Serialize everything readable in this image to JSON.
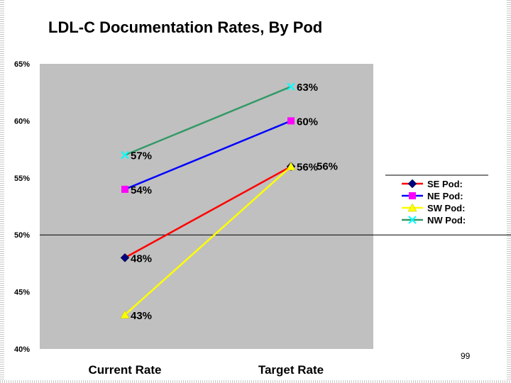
{
  "page_number": "99",
  "chart_data": {
    "type": "line",
    "title": "LDL-C Documentation Rates, By Pod",
    "xlabel": "",
    "ylabel": "",
    "categories": [
      "Current Rate",
      "Target Rate"
    ],
    "ylim": [
      40,
      65
    ],
    "yticks": [
      40,
      45,
      50,
      55,
      60,
      65
    ],
    "ytick_labels": [
      "40%",
      "45%",
      "50%",
      "55%",
      "60%",
      "65%"
    ],
    "grid": "horizontal line at 50%",
    "plot_background": "#c0c0c0",
    "legend_position": "right",
    "series": [
      {
        "name": "SE Pod:",
        "values": [
          48,
          56
        ],
        "labels": [
          "48%",
          "56%"
        ],
        "color": "#ff0000",
        "marker_color": "#000080",
        "marker": "diamond"
      },
      {
        "name": "NE Pod:",
        "values": [
          54,
          60
        ],
        "labels": [
          "54%",
          "60%"
        ],
        "color": "#0000ff",
        "marker_color": "#ff00ff",
        "marker": "square"
      },
      {
        "name": "SW Pod:",
        "values": [
          43,
          56
        ],
        "labels": [
          "43%",
          "56%"
        ],
        "color": "#ffff00",
        "marker_color": "#ffff00",
        "marker": "triangle"
      },
      {
        "name": "NW Pod:",
        "values": [
          57,
          63
        ],
        "labels": [
          "57%",
          "63%"
        ],
        "color": "#339966",
        "marker_color": "#00ffff",
        "marker": "x"
      }
    ]
  }
}
